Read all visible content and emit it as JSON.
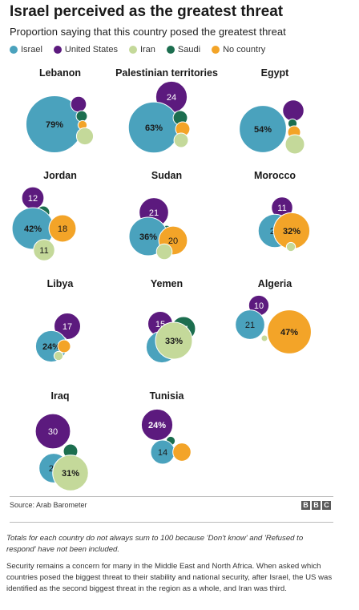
{
  "header": {
    "title": "Israel perceived as the greatest threat",
    "subtitle": "Proportion saying that this country posed the greatest threat"
  },
  "chart_data": {
    "type": "bubble",
    "series": [
      {
        "name": "Israel",
        "color": "#4aa2bd"
      },
      {
        "name": "United States",
        "color": "#5c1a7e"
      },
      {
        "name": "Iran",
        "color": "#c4d99a"
      },
      {
        "name": "Saudi",
        "color": "#1c6e4f"
      },
      {
        "name": "No country",
        "color": "#f3a428"
      }
    ],
    "countries": [
      {
        "name": "Lebanon",
        "values": [
          {
            "series": "Israel",
            "value": 79,
            "label": "79%",
            "bold": true
          },
          {
            "series": "United States",
            "value": 6
          },
          {
            "series": "Saudi",
            "value": 3
          },
          {
            "series": "No country",
            "value": 2
          },
          {
            "series": "Iran",
            "value": 7
          }
        ]
      },
      {
        "name": "Palestinian territories",
        "values": [
          {
            "series": "United States",
            "value": 24,
            "label": "24"
          },
          {
            "series": "Israel",
            "value": 63,
            "label": "63%",
            "bold": true
          },
          {
            "series": "Saudi",
            "value": 5
          },
          {
            "series": "No country",
            "value": 5
          },
          {
            "series": "Iran",
            "value": 5
          }
        ]
      },
      {
        "name": "Egypt",
        "values": [
          {
            "series": "United States",
            "value": 11
          },
          {
            "series": "Israel",
            "value": 54,
            "label": "54%",
            "bold": true
          },
          {
            "series": "Saudi",
            "value": 2
          },
          {
            "series": "No country",
            "value": 4
          },
          {
            "series": "Iran",
            "value": 9
          }
        ]
      },
      {
        "name": "Jordan",
        "values": [
          {
            "series": "United States",
            "value": 12,
            "label": "12"
          },
          {
            "series": "Saudi",
            "value": 4
          },
          {
            "series": "Israel",
            "value": 42,
            "label": "42%",
            "bold": true
          },
          {
            "series": "No country",
            "value": 18,
            "label": "18"
          },
          {
            "series": "Iran",
            "value": 11,
            "label": "11"
          }
        ]
      },
      {
        "name": "Sudan",
        "values": [
          {
            "series": "United States",
            "value": 21,
            "label": "21"
          },
          {
            "series": "Saudi",
            "value": 3
          },
          {
            "series": "Israel",
            "value": 36,
            "label": "36%",
            "bold": true
          },
          {
            "series": "No country",
            "value": 20,
            "label": "20"
          },
          {
            "series": "Iran",
            "value": 6
          }
        ]
      },
      {
        "name": "Morocco",
        "values": [
          {
            "series": "United States",
            "value": 11,
            "label": "11"
          },
          {
            "series": "Saudi",
            "value": 3
          },
          {
            "series": "Israel",
            "value": 27,
            "label": "27"
          },
          {
            "series": "No country",
            "value": 32,
            "label": "32%",
            "bold": true
          },
          {
            "series": "Iran",
            "value": 2
          }
        ]
      },
      {
        "name": "Libya",
        "values": [
          {
            "series": "United States",
            "value": 17,
            "label": "17"
          },
          {
            "series": "Saudi",
            "value": 3
          },
          {
            "series": "Israel",
            "value": 24,
            "label": "24%",
            "bold": true
          },
          {
            "series": "No country",
            "value": 4
          },
          {
            "series": "Iran",
            "value": 2
          }
        ]
      },
      {
        "name": "Yemen",
        "values": [
          {
            "series": "United States",
            "value": 15,
            "label": "15"
          },
          {
            "series": "Saudi",
            "value": 14,
            "label": "14"
          },
          {
            "series": "Israel",
            "value": 24,
            "label": "24"
          },
          {
            "series": "No country",
            "value": 2
          },
          {
            "series": "Iran",
            "value": 33,
            "label": "33%",
            "bold": true
          }
        ]
      },
      {
        "name": "Algeria",
        "values": [
          {
            "series": "United States",
            "value": 10,
            "label": "10"
          },
          {
            "series": "Israel",
            "value": 21,
            "label": "21"
          },
          {
            "series": "Iran",
            "value": 1
          },
          {
            "series": "No country",
            "value": 47,
            "label": "47%",
            "bold": true
          }
        ]
      },
      {
        "name": "Iraq",
        "values": [
          {
            "series": "United States",
            "value": 30,
            "label": "30"
          },
          {
            "series": "Saudi",
            "value": 5
          },
          {
            "series": "Israel",
            "value": 21,
            "label": "21"
          },
          {
            "series": "No country",
            "value": 1
          },
          {
            "series": "Iran",
            "value": 31,
            "label": "31%",
            "bold": true
          }
        ]
      },
      {
        "name": "Tunisia",
        "values": [
          {
            "series": "United States",
            "value": 24,
            "label": "24%",
            "bold": true
          },
          {
            "series": "Saudi",
            "value": 2
          },
          {
            "series": "Israel",
            "value": 14,
            "label": "14"
          },
          {
            "series": "No country",
            "value": 8
          }
        ]
      }
    ]
  },
  "footer": {
    "source": "Source: Arab Barometer",
    "brand": [
      "B",
      "B",
      "C"
    ],
    "note": "Totals for each country do not always sum to 100 because 'Don't know' and 'Refused to respond' have not been included.",
    "summary": "Security remains a concern for many in the Middle East and North Africa. When asked which countries posed the biggest threat to their stability and national security, after Israel, the US was identified as the second biggest threat in the region as a whole, and Iran was third."
  }
}
